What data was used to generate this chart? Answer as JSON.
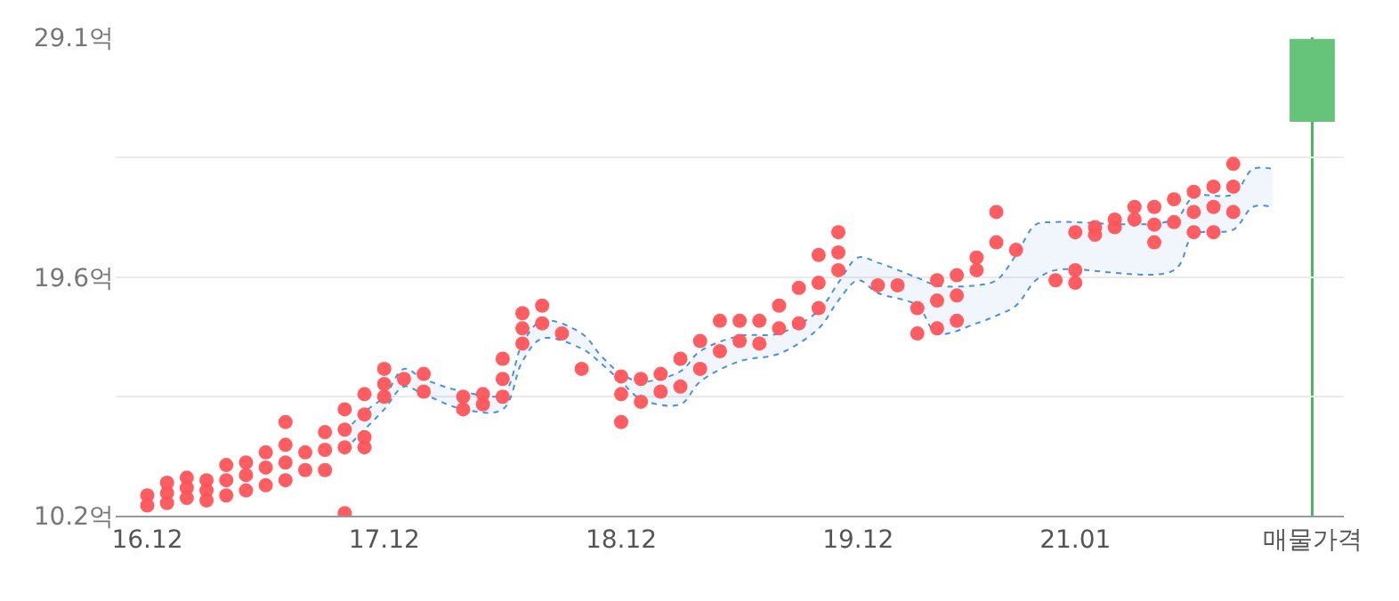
{
  "chart_data": {
    "type": "scatter",
    "categories": [
      "16.12",
      null,
      null,
      null,
      null,
      null,
      null,
      null,
      null,
      null,
      null,
      null,
      "17.12",
      null,
      null,
      null,
      null,
      null,
      null,
      null,
      null,
      null,
      null,
      null,
      "18.12",
      null,
      null,
      null,
      null,
      null,
      null,
      null,
      null,
      null,
      null,
      null,
      "19.12",
      null,
      null,
      null,
      null,
      null,
      null,
      null,
      null,
      null,
      null,
      "21.01",
      null,
      null,
      null,
      null,
      null,
      null,
      null,
      null,
      null,
      null,
      null,
      "매물가격",
      null
    ],
    "ylim": [
      10.2,
      29.1
    ],
    "yticks": [
      {
        "value": 10.2,
        "label": "10.2억"
      },
      {
        "value": 14.9,
        "label": null
      },
      {
        "value": 19.6,
        "label": "19.6억"
      },
      {
        "value": 24.35,
        "label": null
      },
      {
        "value": 29.1,
        "label": "29.1억"
      }
    ],
    "grid": "y",
    "legend": false,
    "marker": "circle",
    "ref_lines": [
      {
        "axis": "x",
        "value": "매물가격",
        "label": null,
        "color": "#4cb85a"
      }
    ],
    "series": [
      {
        "type": "line",
        "line_style": "dotted",
        "marker": "none",
        "color": "#4a90e2",
        "values": [
          null,
          null,
          null,
          null,
          null,
          null,
          null,
          null,
          null,
          null,
          12.8,
          13.6,
          14.4,
          15.3,
          15.0,
          null,
          14.4,
          null,
          14.4,
          16.3,
          17.2,
          null,
          16.8,
          16.2,
          15.5,
          14.8,
          null,
          14.6,
          15.5,
          null,
          16.3,
          null,
          16.6,
          null,
          17.6,
          18.7,
          19.5,
          19.0,
          null,
          18.5,
          17.4,
          null,
          17.8,
          18.1,
          18.5,
          19.5,
          19.9,
          null,
          null,
          null,
          null,
          null,
          19.9,
          21.3,
          null,
          21.5,
          22.4,
          22.4,
          null,
          null,
          null
        ]
      },
      {
        "type": "area",
        "line_style": "dotted",
        "marker": "none",
        "color": "#4a90e2",
        "values": [
          null,
          null,
          null,
          null,
          null,
          null,
          null,
          null,
          null,
          null,
          13.5,
          14.3,
          14.9,
          16.0,
          15.6,
          null,
          15.1,
          null,
          15.0,
          17.0,
          17.9,
          null,
          17.4,
          16.5,
          15.8,
          15.5,
          null,
          15.9,
          16.7,
          null,
          17.3,
          null,
          17.4,
          null,
          18.3,
          19.4,
          20.4,
          20.2,
          null,
          19.6,
          19.3,
          null,
          19.3,
          19.5,
          20.5,
          21.7,
          21.8,
          null,
          null,
          null,
          null,
          null,
          21.9,
          22.8,
          null,
          22.9,
          23.9,
          23.9,
          null,
          null,
          null
        ]
      },
      {
        "color": "#ff5459",
        "values": [
          11.0,
          11.5,
          11.7,
          11.6,
          12.2,
          12.3,
          12.7,
          13.9,
          12.7,
          13.5,
          14.4,
          15.0,
          16.0,
          15.6,
          15.8,
          null,
          14.9,
          15.0,
          16.4,
          18.2,
          18.5,
          17.4,
          16.0,
          null,
          15.7,
          15.6,
          15.8,
          16.4,
          17.1,
          17.9,
          17.9,
          17.9,
          18.5,
          19.2,
          20.5,
          21.4,
          null,
          19.3,
          19.3,
          18.4,
          19.5,
          19.7,
          20.4,
          22.2,
          20.7,
          null,
          19.5,
          21.4,
          21.6,
          21.9,
          22.4,
          22.4,
          22.7,
          23.0,
          23.2,
          24.1,
          null,
          null,
          null,
          null,
          null
        ]
      },
      {
        "color": "#ff5459",
        "values": [
          10.6,
          11.1,
          11.3,
          11.2,
          11.6,
          11.8,
          12.1,
          13.0,
          12.0,
          12.8,
          13.6,
          14.2,
          15.4,
          null,
          15.1,
          null,
          14.4,
          14.6,
          15.6,
          17.6,
          17.8,
          null,
          null,
          null,
          15.0,
          14.7,
          15.1,
          15.3,
          16.0,
          16.7,
          17.1,
          17.0,
          17.6,
          17.8,
          19.4,
          20.6,
          null,
          null,
          null,
          17.4,
          18.7,
          18.9,
          19.9,
          21.0,
          null,
          null,
          null,
          19.9,
          21.3,
          21.6,
          21.9,
          21.7,
          21.8,
          22.2,
          22.4,
          23.2,
          null,
          null,
          null,
          null,
          null
        ]
      },
      {
        "color": "#ff5459",
        "values": [
          null,
          10.7,
          10.9,
          10.8,
          11.0,
          11.2,
          11.4,
          12.3,
          null,
          12.0,
          12.9,
          13.3,
          14.9,
          null,
          null,
          null,
          null,
          null,
          14.9,
          17.0,
          null,
          null,
          null,
          null,
          13.9,
          null,
          null,
          null,
          null,
          null,
          null,
          null,
          null,
          null,
          18.4,
          19.9,
          null,
          null,
          null,
          null,
          17.6,
          17.9,
          null,
          null,
          null,
          null,
          null,
          19.4,
          null,
          null,
          null,
          21.0,
          null,
          21.4,
          21.4,
          22.2,
          null,
          null,
          null,
          null,
          null
        ]
      },
      {
        "color": "#ff5459",
        "values": [
          null,
          null,
          null,
          null,
          null,
          null,
          null,
          11.6,
          null,
          null,
          10.3,
          12.9,
          null,
          null,
          null,
          null,
          null,
          null,
          null,
          null,
          null,
          null,
          null,
          null,
          null,
          null,
          null,
          null,
          null,
          null,
          null,
          null,
          null,
          null,
          null,
          null,
          null,
          null,
          null,
          null,
          null,
          null,
          null,
          null,
          null,
          null,
          null,
          null,
          null,
          null,
          null,
          null,
          null,
          null,
          null,
          null,
          null,
          null,
          null,
          null,
          null
        ]
      },
      {
        "type": "bar",
        "color": "#66c47a",
        "base": [
          null,
          null,
          null,
          null,
          null,
          null,
          null,
          null,
          null,
          null,
          null,
          null,
          null,
          null,
          null,
          null,
          null,
          null,
          null,
          null,
          null,
          null,
          null,
          null,
          null,
          null,
          null,
          null,
          null,
          null,
          null,
          null,
          null,
          null,
          null,
          null,
          null,
          null,
          null,
          null,
          null,
          null,
          null,
          null,
          null,
          null,
          null,
          null,
          null,
          null,
          null,
          null,
          null,
          null,
          null,
          null,
          null,
          null,
          null,
          25.8,
          null
        ],
        "values": [
          null,
          null,
          null,
          null,
          null,
          null,
          null,
          null,
          null,
          null,
          null,
          null,
          null,
          null,
          null,
          null,
          null,
          null,
          null,
          null,
          null,
          null,
          null,
          null,
          null,
          null,
          null,
          null,
          null,
          null,
          null,
          null,
          null,
          null,
          null,
          null,
          null,
          null,
          null,
          null,
          null,
          null,
          null,
          null,
          null,
          null,
          null,
          null,
          null,
          null,
          null,
          null,
          null,
          null,
          null,
          null,
          null,
          null,
          null,
          3.2,
          null
        ]
      }
    ]
  }
}
